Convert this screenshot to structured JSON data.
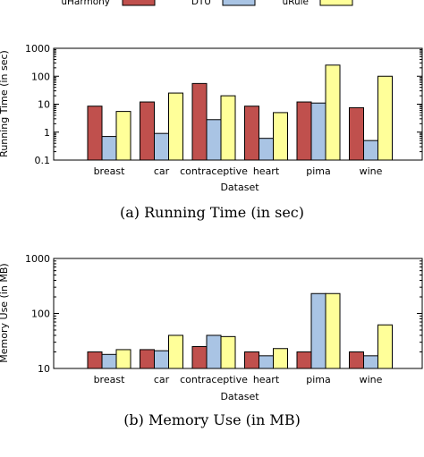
{
  "legend": [
    {
      "name": "uHarmony",
      "color": "#c0504d"
    },
    {
      "name": "DTU",
      "color": "#a9c4e4"
    },
    {
      "name": "uRule",
      "color": "#ffff99"
    }
  ],
  "chart_data": [
    {
      "type": "bar",
      "caption": "(a) Running Time (in sec)",
      "xlabel": "Dataset",
      "ylabel": "Running Time (in sec)",
      "yscale": "log",
      "ylim": [
        0.1,
        1000
      ],
      "yticks": [
        "0.1",
        "1",
        "10",
        "100",
        "1000"
      ],
      "categories": [
        "breast",
        "car",
        "contraceptive",
        "heart",
        "pima",
        "wine"
      ],
      "series": [
        {
          "name": "uHarmony",
          "values": [
            8.5,
            12,
            55,
            8.5,
            12,
            7.5
          ]
        },
        {
          "name": "DTU",
          "values": [
            0.7,
            0.9,
            2.8,
            0.6,
            11,
            0.5
          ]
        },
        {
          "name": "uRule",
          "values": [
            5.5,
            25,
            20,
            5,
            250,
            100
          ]
        }
      ]
    },
    {
      "type": "bar",
      "caption": "(b) Memory Use (in MB)",
      "xlabel": "Dataset",
      "ylabel": "Memory Use (in MB)",
      "yscale": "log",
      "ylim": [
        10,
        1000
      ],
      "yticks": [
        "10",
        "100",
        "1000"
      ],
      "categories": [
        "breast",
        "car",
        "contraceptive",
        "heart",
        "pima",
        "wine"
      ],
      "series": [
        {
          "name": "uHarmony",
          "values": [
            20,
            22,
            25,
            20,
            20,
            20
          ]
        },
        {
          "name": "DTU",
          "values": [
            18,
            21,
            40,
            17,
            230,
            17
          ]
        },
        {
          "name": "uRule",
          "values": [
            22,
            40,
            38,
            23,
            230,
            62
          ]
        }
      ]
    }
  ]
}
